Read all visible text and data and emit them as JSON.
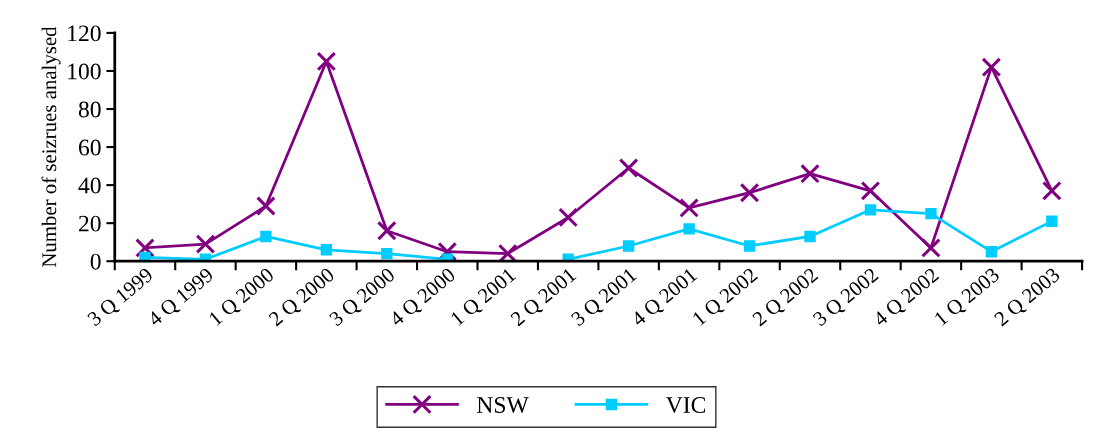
{
  "chart_data": {
    "type": "line",
    "ylabel": "Number of seizrues analysed",
    "categories": [
      "3 Q 1999",
      "4 Q 1999",
      "1 Q 2000",
      "2 Q 2000",
      "3 Q 2000",
      "4 Q 2000",
      "1 Q 2001",
      "2 Q 2001",
      "3 Q 2001",
      "4 Q 2001",
      "1 Q 2002",
      "2 Q 2002",
      "3 Q 2002",
      "4 Q 2002",
      "1 Q 2003",
      "2 Q 2003"
    ],
    "series": [
      {
        "name": "NSW",
        "color": "#800080",
        "marker": "cross",
        "values": [
          7,
          9,
          29,
          105,
          16,
          5,
          4,
          23,
          49,
          28,
          36,
          46,
          37,
          7,
          102,
          37
        ]
      },
      {
        "name": "VIC",
        "color": "#00ccff",
        "marker": "square",
        "values": [
          2,
          1,
          13,
          6,
          4,
          1,
          null,
          1,
          8,
          17,
          8,
          13,
          27,
          25,
          5,
          21
        ]
      }
    ],
    "ylim": [
      0,
      120
    ],
    "yticks": [
      0,
      20,
      40,
      60,
      80,
      100,
      120
    ],
    "grid": false,
    "legend": "bottom"
  }
}
